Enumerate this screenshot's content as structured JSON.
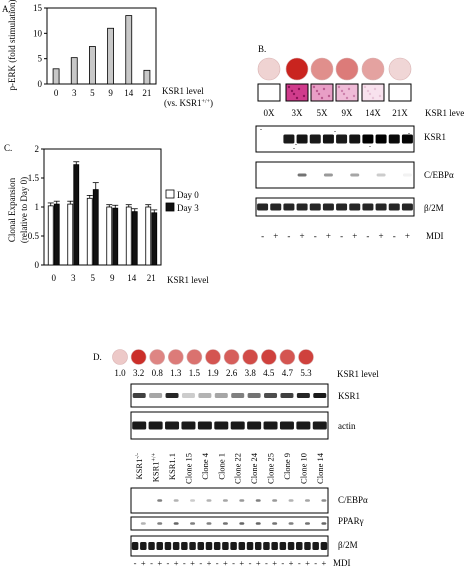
{
  "panels": {
    "a": {
      "label": "A.",
      "ylabel": "p-ERK (fold stimulation)",
      "xlabel_line1": "KSR1 level",
      "xlabel_line2_prefix": "(vs. KSR1",
      "xlabel_line2_sup": "+/+",
      "xlabel_line2_suffix": ")"
    },
    "b": {
      "label": "B.",
      "ksr_level_label": "KSR1 leve",
      "lanes": [
        "0X",
        "3X",
        "5X",
        "9X",
        "14X",
        "21X"
      ],
      "dish_stain": [
        0.1,
        1.0,
        0.45,
        0.55,
        0.35,
        0.08
      ],
      "micro_stain": [
        0.0,
        1.0,
        0.5,
        0.35,
        0.15,
        0.0
      ],
      "blots": [
        "KSR1",
        "C/EBPα",
        "β/2M"
      ],
      "mdi_label": "MDI",
      "treatment": [
        "-",
        "+",
        "-",
        "+",
        "-",
        "+",
        "-",
        "+",
        "-",
        "+",
        "-",
        "+"
      ]
    },
    "c": {
      "label": "C.",
      "ylabel": "Clonal Expansion",
      "ylabel2": "(relative to Day 0)",
      "xlabel": "KSR1  level",
      "legend": [
        {
          "label": "Day 0",
          "color": "#ffffff"
        },
        {
          "label": "Day 3",
          "color": "#111111"
        }
      ]
    },
    "d": {
      "label": "D.",
      "ksr_level_label": "KSR1 level",
      "levels": [
        "1.0",
        "3.2",
        "0.8",
        "1.3",
        "1.5",
        "1.9",
        "2.6",
        "3.8",
        "4.5",
        "4.7",
        "5.3"
      ],
      "dish_stain": [
        0.15,
        0.95,
        0.5,
        0.55,
        0.6,
        0.75,
        0.7,
        0.8,
        0.85,
        0.75,
        0.85
      ],
      "clones_main": [
        "KSR1",
        "KSR1",
        "KSR1.1",
        "Clone 15",
        "Clone 4",
        "Clone 1",
        "Clone 22",
        "Clone 24",
        "Clone 25",
        "Clone 9",
        "Clone 10",
        "Clone 14"
      ],
      "clone_sups": [
        "-/-",
        "+/+",
        "",
        "",
        "",
        "",
        "",
        "",
        "",
        "",
        "",
        ""
      ],
      "blots_top": [
        "KSR1",
        "actin"
      ],
      "blots_bottom": [
        "C/EBPα",
        "PPARγ",
        "β/2M"
      ],
      "mdi_label": "MDI",
      "treatment": [
        "-",
        "+",
        "-",
        "+",
        "-",
        "+",
        "-",
        "+",
        "-",
        "+",
        "-",
        "+",
        "-",
        "+",
        "-",
        "+",
        "-",
        "+",
        "-",
        "+",
        "-",
        "+",
        "-",
        "+"
      ]
    }
  },
  "chart_data": [
    {
      "type": "bar",
      "title": "",
      "categories": [
        "0",
        "3",
        "5",
        "9",
        "14",
        "21"
      ],
      "values": [
        3,
        5.2,
        7.4,
        11,
        13.5,
        2.7
      ],
      "ylabel": "p-ERK (fold stimulation)",
      "xlabel": "KSR1 level (vs. KSR1+/+)",
      "ylim": [
        0,
        15
      ],
      "yticks": [
        0,
        5,
        10,
        15
      ],
      "grid": false
    },
    {
      "type": "bar",
      "title": "",
      "categories": [
        "0",
        "3",
        "5",
        "9",
        "14",
        "21"
      ],
      "series": [
        {
          "name": "Day 0",
          "values": [
            1.02,
            1.05,
            1.15,
            1.0,
            1.0,
            1.0
          ],
          "errors": [
            0.05,
            0.05,
            0.05,
            0.04,
            0.04,
            0.04
          ]
        },
        {
          "name": "Day 3",
          "values": [
            1.05,
            1.73,
            1.3,
            0.98,
            0.92,
            0.9
          ],
          "errors": [
            0.05,
            0.05,
            0.12,
            0.05,
            0.05,
            0.05
          ]
        }
      ],
      "ylabel": "Clonal Expansion (relative to Day 0)",
      "xlabel": "KSR1 level",
      "ylim": [
        0,
        2
      ],
      "yticks": [
        0,
        0.5,
        1,
        1.5,
        2
      ],
      "legend_position": "right",
      "grid": false
    }
  ]
}
